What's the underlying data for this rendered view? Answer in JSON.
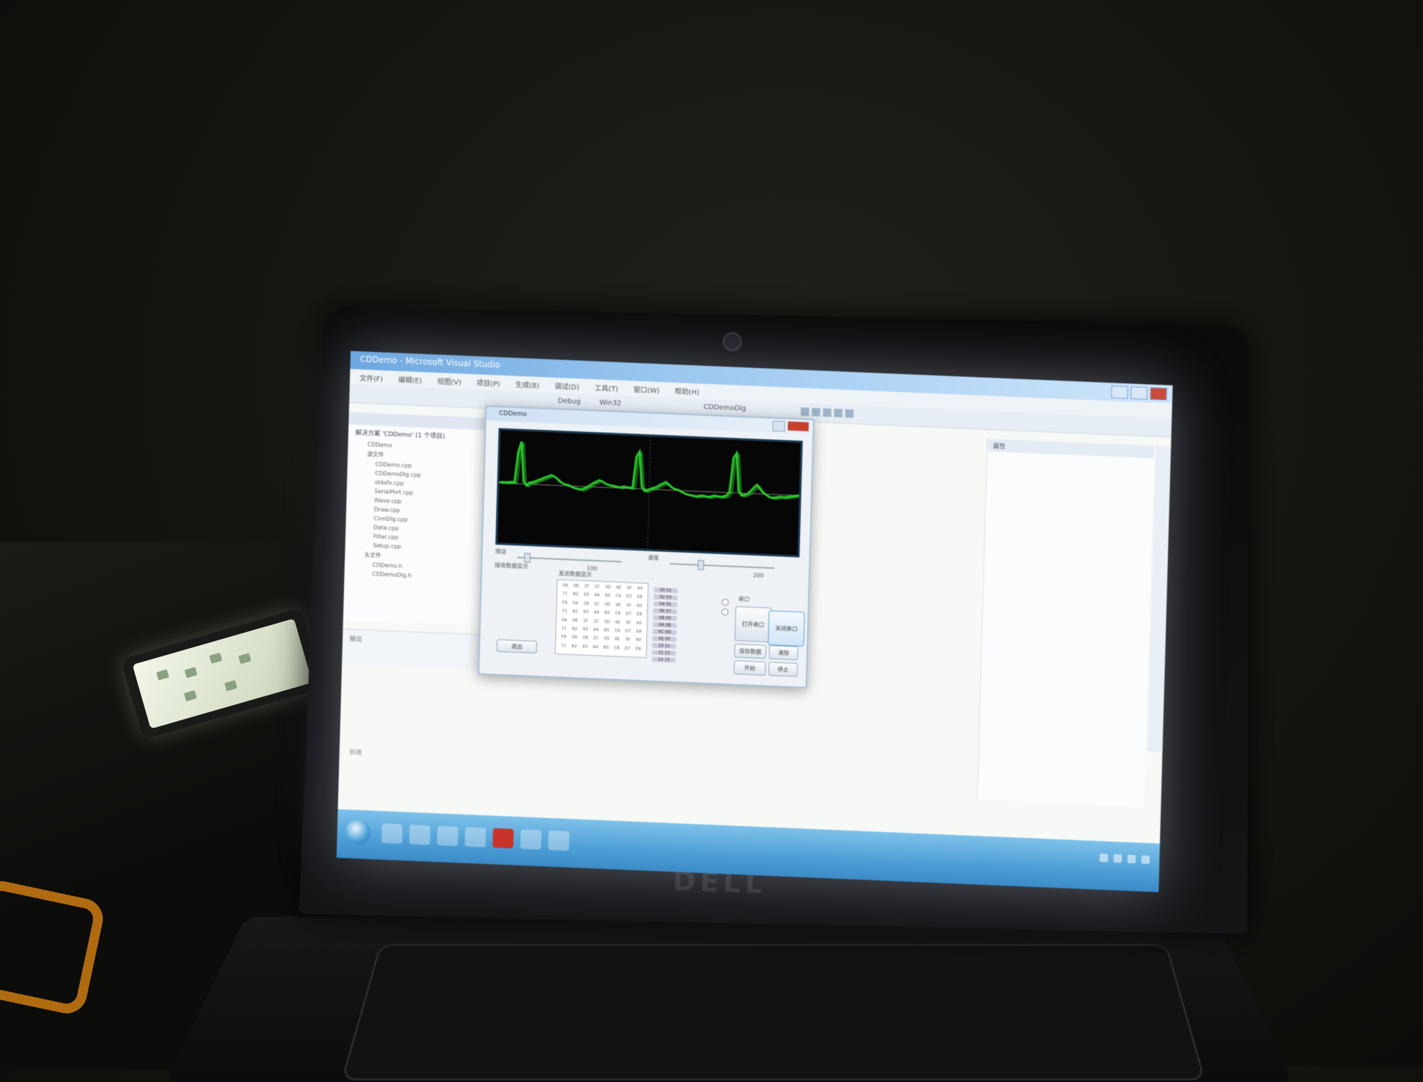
{
  "laptop": {
    "brand": "DELL"
  },
  "ide": {
    "window_title": "CDDemo - Microsoft Visual Studio",
    "menu": [
      "文件(F)",
      "编辑(E)",
      "视图(V)",
      "项目(P)",
      "生成(B)",
      "调试(D)",
      "工具(T)",
      "窗口(W)",
      "帮助(H)"
    ],
    "config": "Debug",
    "platform": "Win32",
    "startup_project": "CDDemoDlg",
    "solution": {
      "root": "解决方案 'CDDemo' (1 个项目)",
      "project": "CDDemo",
      "folder_source": "源文件",
      "files_source": [
        "CDDemo.cpp",
        "CDDemoDlg.cpp",
        "stdafx.cpp",
        "SerialPort.cpp",
        "Wave.cpp",
        "Draw.cpp",
        "ComDlg.cpp",
        "Data.cpp",
        "Filter.cpp",
        "Setup.cpp"
      ],
      "folder_header": "头文件",
      "files_header": [
        "CDDemo.h",
        "CDDemoDlg.h"
      ]
    },
    "output_label": "输出",
    "status_text": "就绪",
    "right_panel_title": "属性"
  },
  "dialog": {
    "title": "CDDemo",
    "slider1_label": "增益",
    "slider1_value": "100",
    "slider2_label": "速度",
    "slider2_value": "200",
    "recv_label": "接收数据显示",
    "send_label": "发送数据显示",
    "hex_values": [
      "0A",
      "0B",
      "1F",
      "2C",
      "3D",
      "4E",
      "5F",
      "60",
      "71",
      "82",
      "93",
      "A4",
      "B5",
      "C6",
      "D7",
      "E8",
      "F9",
      "0A",
      "1B",
      "2C",
      "3D",
      "4E",
      "5F",
      "60",
      "71",
      "82",
      "93",
      "A4",
      "B5",
      "C6",
      "D7",
      "E8",
      "0A",
      "0B",
      "1F",
      "2C",
      "3D",
      "4E",
      "5F",
      "60",
      "71",
      "82",
      "93",
      "A4",
      "B5",
      "C6",
      "D7",
      "E8",
      "F9",
      "0A",
      "1B",
      "2C",
      "3D",
      "4E",
      "5F",
      "60",
      "71",
      "82",
      "93",
      "A4",
      "B5",
      "C6",
      "D7",
      "E8"
    ],
    "hex_column": [
      "00 01",
      "02 03",
      "04 05",
      "06 07",
      "08 09",
      "0A 0B",
      "0C 0D",
      "0E 0F",
      "10 11",
      "12 13",
      "14 15"
    ],
    "group_label": "串口",
    "btn_open": "打开串口",
    "btn_close": "关闭串口",
    "btn_save": "保存数据",
    "btn_clear": "清除",
    "btn_start": "开始",
    "btn_stop": "停止",
    "btn_exit": "退出"
  },
  "waveform": {
    "color": "#2fd62f",
    "baseline_color": "#7a7a7a",
    "samples": [
      0,
      0.1,
      0.05,
      0.1,
      0.2,
      0.1,
      6,
      8,
      0.4,
      -0.4,
      0.2,
      0.3,
      0.5,
      0.8,
      1.0,
      1.3,
      1.5,
      1.8,
      1.6,
      1.2,
      0.6,
      0.3,
      0.1,
      0,
      -0.3,
      -0.5,
      -0.6,
      -0.7,
      -0.5,
      -0.2,
      0.2,
      0.6,
      0.9,
      1.2,
      1.0,
      0.6,
      0.4,
      0.3,
      0.2,
      0.1,
      0,
      0.2,
      0.1,
      0,
      0.1,
      6,
      7,
      0.3,
      -0.5,
      -0.3,
      0,
      0.2,
      0.4,
      0.8,
      1.1,
      1.4,
      0.8,
      0.4,
      0.1,
      0,
      -0.3,
      -0.6,
      -0.8,
      -0.9,
      -1.0,
      -1.1,
      -1.0,
      -0.9,
      -1.0,
      -1.1,
      -1.0,
      -0.8,
      -0.9,
      -1.0,
      -0.9,
      -0.7,
      0,
      6.5,
      7.5,
      0.2,
      -0.6,
      -0.4,
      -0.2,
      0.4,
      1.0,
      1.6,
      0.8,
      0.2,
      -0.2,
      -0.6,
      -0.8,
      -0.7,
      -0.6,
      -0.5,
      -0.6,
      -0.5,
      -0.4,
      -0.3,
      -0.2,
      -0.1
    ]
  }
}
